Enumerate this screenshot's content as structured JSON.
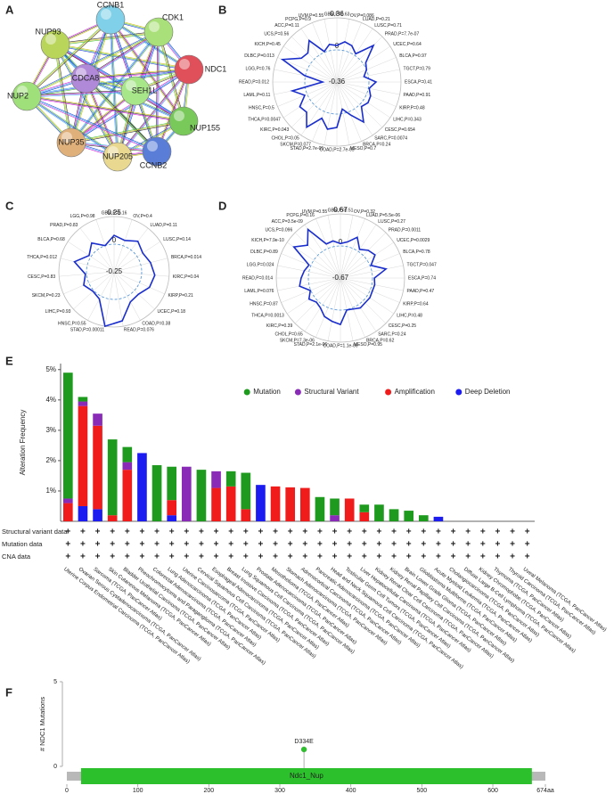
{
  "panel_labels": [
    "A",
    "B",
    "C",
    "D",
    "E",
    "F"
  ],
  "network": {
    "nodes": [
      {
        "label": "NUP93",
        "color": "#b9d65a"
      },
      {
        "label": "CCNB1",
        "color": "#7fd0e8"
      },
      {
        "label": "CDK1",
        "color": "#a9e07a"
      },
      {
        "label": "NDC1",
        "color": "#e0505a"
      },
      {
        "label": "CDCA8",
        "color": "#b08ad8"
      },
      {
        "label": "SEH1L",
        "color": "#a8e68a"
      },
      {
        "label": "NUP155",
        "color": "#78c95a"
      },
      {
        "label": "NUP2",
        "color": "#9fe07a"
      },
      {
        "label": "NUP35",
        "color": "#e0b07a"
      },
      {
        "label": "NUP205",
        "color": "#e8d890"
      },
      {
        "label": "CCNB2",
        "color": "#5a7ed8"
      }
    ]
  },
  "chart_data": [
    {
      "type": "radar",
      "color": "#1a2ecc",
      "rlim": [
        -0.36,
        0.36
      ],
      "rticks": [
        0.36,
        0,
        -0.36
      ],
      "categories": [
        "GBM,P=0.63",
        "OV,P=0.086",
        "LUAD,P=0.21",
        "LUSC,P=0.71",
        "PRAD,P=7.7e-07",
        "UCEC,P=0.64",
        "BLCA,P=0.97",
        "TGCT,P=0.79",
        "ESCA,P=0.41",
        "PAAD,P=0.91",
        "KIRP,P=0.48",
        "LIHC,P=0.343",
        "CESC,P=0.654",
        "SARC,P=0.0074",
        "BRCA,P=0.24",
        "MESO,P=0.7",
        "COAD,P=2.7e-05",
        "STAD,P=2.7e-05",
        "SKCM,P=0.077",
        "CHOL,P=0.05",
        "KIRC,P=0.043",
        "THCA,P=0.0047",
        "HNSC,P=0.5",
        "LAML,P=0.11",
        "READ,P=0.012",
        "LGG,P=0.76",
        "DLBC,P=0.013",
        "KICH,P=0.45",
        "UCS,P=0.56",
        "ACC,P=0.11",
        "PCPG,P=0.9",
        "UVM,P=0.55"
      ],
      "values": [
        0.05,
        0.1,
        0.08,
        0.02,
        0.22,
        0.03,
        0.0,
        -0.05,
        0.08,
        0.01,
        0.05,
        0.06,
        0.03,
        0.18,
        0.04,
        -0.05,
        0.15,
        0.18,
        0.08,
        0.25,
        0.12,
        0.14,
        0.03,
        0.15,
        -0.2,
        0.01,
        0.3,
        0.12,
        0.1,
        0.2,
        0.01,
        0.07
      ]
    },
    {
      "type": "radar",
      "color": "#1a2ecc",
      "rlim": [
        -0.25,
        0.25
      ],
      "rticks": [
        0.25,
        0,
        -0.25
      ],
      "categories": [
        "GBM,P=0.16",
        "OV,P=0.4",
        "LUAD,P=0.11",
        "LUSC,P=0.14",
        "BRCA,P=0.014",
        "KIRC,P=0.04",
        "KIRP,P=0.21",
        "UCEC,P=0.18",
        "COAD,P=0.38",
        "READ,P=0.076",
        "STAD,P=0.00011",
        "HNSC,P=0.55",
        "LIHC,P=0.93",
        "SKCM,P=0.23",
        "CESC,P=0.83",
        "THCA,P=0.012",
        "BLCA,P=0.68",
        "PRAD,P=0.83",
        "LGG,P=0.98"
      ],
      "values": [
        0.08,
        0.05,
        0.1,
        0.06,
        0.09,
        0.12,
        0.1,
        0.05,
        0.06,
        0.2,
        0.25,
        0.03,
        0.01,
        0.05,
        0.01,
        0.12,
        0.02,
        0.08,
        0.0
      ]
    },
    {
      "type": "radar",
      "color": "#1a2ecc",
      "rlim": [
        -0.67,
        0.67
      ],
      "rticks": [
        0.67,
        0,
        -0.67
      ],
      "categories": [
        "GBM,P=0.51",
        "OV,P=0.32",
        "LUAD,P=5.5e-06",
        "LUSC,P=0.27",
        "PRAD,P=0.0011",
        "UCEC,P=0.0029",
        "BLCA,P=0.78",
        "TGCT,P=0.047",
        "ESCA,P=0.74",
        "PAAD,P=0.47",
        "KIRP,P=0.64",
        "LIHC,P=0.48",
        "CESC,P=0.25",
        "SARC,P=0.24",
        "BRCA,P=0.62",
        "MESO,P=0.95",
        "COAD,P=1.1e-06",
        "STAD,P=2.1e-06",
        "SKCM,P=7.3e-06",
        "CHOL,P=0.65",
        "KIRC,P=0.39",
        "THCA,P=0.0013",
        "HNSC,P=0.87",
        "LAML,P=0.076",
        "READ,P=0.014",
        "LGG,P=0.024",
        "DLBC,P=0.89",
        "KICH,P=7.9e-10",
        "UCS,P=0.096",
        "ACC,P=3.5e-09",
        "PCPG,P=0.16",
        "UVM,P=0.55"
      ],
      "values": [
        0.05,
        0.1,
        0.25,
        0.05,
        0.15,
        0.2,
        0.02,
        0.3,
        0.04,
        0.06,
        0.05,
        0.07,
        0.06,
        0.08,
        0.03,
        0.01,
        0.3,
        0.25,
        0.2,
        0.08,
        0.04,
        0.12,
        0.01,
        0.2,
        0.15,
        0.1,
        0.04,
        0.5,
        0.3,
        0.55,
        0.1,
        0.12
      ]
    },
    {
      "type": "stacked_bar",
      "y_label": "Alteration Frequency",
      "ylim": [
        0,
        5.2
      ],
      "yticks": [
        {
          "value": 1,
          "label": "1%"
        },
        {
          "value": 2,
          "label": "2%"
        },
        {
          "value": 3,
          "label": "3%"
        },
        {
          "value": 4,
          "label": "4%"
        },
        {
          "value": 5,
          "label": "5%"
        }
      ],
      "legend": "upper right",
      "annotation_rows": [
        "Structural variant data",
        "Mutation data",
        "CNA data"
      ],
      "annotation_symbol": "+",
      "categories": [
        "Uterine Corpus Endometrial Carcinoma (TCGA, PanCancer Atlas)",
        "Ovarian Serous Cystadenocarcinoma (TCGA, PanCancer Atlas)",
        "Sarcoma (TCGA, PanCancer Atlas)",
        "Skin Cutaneous Melanoma (TCGA, PanCancer Atlas)",
        "Bladder Urothelial Carcinoma (TCGA, PanCancer Atlas)",
        "Pheochromocytoma and Paraganglioma (TCGA, PanCancer Atlas)",
        "Colorectal Adenocarcinoma (TCGA, PanCancer Atlas)",
        "Lung Adenocarcinoma (TCGA, PanCancer Atlas)",
        "Uterine Carcinosarcoma (TCGA, PanCancer Atlas)",
        "Cervical Squamous Cell Carcinoma (TCGA, PanCancer Atlas)",
        "Esophageal Adenocarcinoma (TCGA, PanCancer Atlas)",
        "Breast Invasive Carcinoma (TCGA, PanCancer Atlas)",
        "Lung Squamous Cell Carcinoma (TCGA, PanCancer Atlas)",
        "Prostate Adenocarcinoma (TCGA, PanCancer Atlas)",
        "Mesothelioma (TCGA, PanCancer Atlas)",
        "Stomach Adenocarcinoma (TCGA, PanCancer Atlas)",
        "Adrenocortical Carcinoma (TCGA, PanCancer Atlas)",
        "Pancreatic Adenocarcinoma (TCGA, PanCancer Atlas)",
        "Head and Neck Squamous Cell Carcinoma (TCGA, PanCancer Atlas)",
        "Testicular Germ Cell Tumors (TCGA, PanCancer Atlas)",
        "Liver Hepatocellular Carcinoma (TCGA, PanCancer Atlas)",
        "Kidney Renal Clear Cell Carcinoma (TCGA, PanCancer Atlas)",
        "Kidney Renal Papillary Cell Carcinoma (TCGA, PanCancer Atlas)",
        "Brain Lower Grade Glioma (TCGA, PanCancer Atlas)",
        "Glioblastoma Multiforme (TCGA, PanCancer Atlas)",
        "Acute Myeloid Leukemia (TCGA, PanCancer Atlas)",
        "Cholangiocarcinoma (TCGA, PanCancer Atlas)",
        "Diffuse Large B-Cell Lymphoma (TCGA, PanCancer Atlas)",
        "Kidney Chromophobe (TCGA, PanCancer Atlas)",
        "Thymoma (TCGA, PanCancer Atlas)",
        "Thyroid Carcinoma (TCGA, PanCancer Atlas)",
        "Uveal Melanoma (TCGA, PanCancer Atlas)"
      ],
      "series": [
        {
          "name": "Deep Deletion",
          "color": "#1c1cf0",
          "values": [
            0,
            0.5,
            0.4,
            0,
            0,
            2.25,
            0,
            0.2,
            0,
            0,
            0,
            0,
            0,
            1.2,
            0,
            0,
            0,
            0,
            0,
            0,
            0,
            0,
            0,
            0,
            0,
            0.15,
            0,
            0,
            0,
            0,
            0,
            0
          ]
        },
        {
          "name": "Amplification",
          "color": "#f01c1c",
          "values": [
            0.6,
            3.3,
            2.75,
            0.2,
            1.7,
            0,
            0,
            0.5,
            0,
            0,
            1.1,
            1.15,
            0.4,
            0,
            1.15,
            1.12,
            1.1,
            0,
            0,
            0.75,
            0.3,
            0,
            0,
            0,
            0,
            0,
            0,
            0,
            0,
            0,
            0,
            0
          ]
        },
        {
          "name": "Structural Variant",
          "color": "#8a2bb8",
          "values": [
            0.15,
            0.15,
            0.4,
            0,
            0.25,
            0,
            0,
            0,
            1.8,
            0,
            0.55,
            0,
            0,
            0,
            0,
            0,
            0,
            0,
            0.2,
            0,
            0,
            0,
            0,
            0,
            0,
            0,
            0,
            0,
            0,
            0,
            0,
            0
          ]
        },
        {
          "name": "Mutation",
          "color": "#1e9a1e",
          "values": [
            4.15,
            0.15,
            0,
            2.5,
            0.5,
            0,
            1.85,
            1.1,
            0,
            1.7,
            0,
            0.5,
            1.2,
            0,
            0,
            0,
            0,
            0.8,
            0.55,
            0,
            0.25,
            0.55,
            0.4,
            0.35,
            0.2,
            0,
            0,
            0,
            0,
            0,
            0,
            0
          ]
        }
      ],
      "legend_order": [
        3,
        2,
        1,
        0
      ]
    },
    {
      "type": "lollipop",
      "y_label": "# NDC1 Mutations",
      "ylim": [
        0,
        5
      ],
      "yticks": [
        0,
        5
      ],
      "xlim": [
        0,
        674
      ],
      "xticks": [
        0,
        100,
        200,
        300,
        400,
        500,
        600,
        {
          "value": 674,
          "label": "674aa"
        }
      ],
      "color": "#2cc02c",
      "x": [
        334
      ],
      "values": [
        1
      ],
      "point_labels": [
        "D334E"
      ],
      "domains": [
        {
          "name": "Ndc1_Nup",
          "start": 20,
          "end": 655,
          "color": "#2cc02c"
        }
      ]
    }
  ]
}
